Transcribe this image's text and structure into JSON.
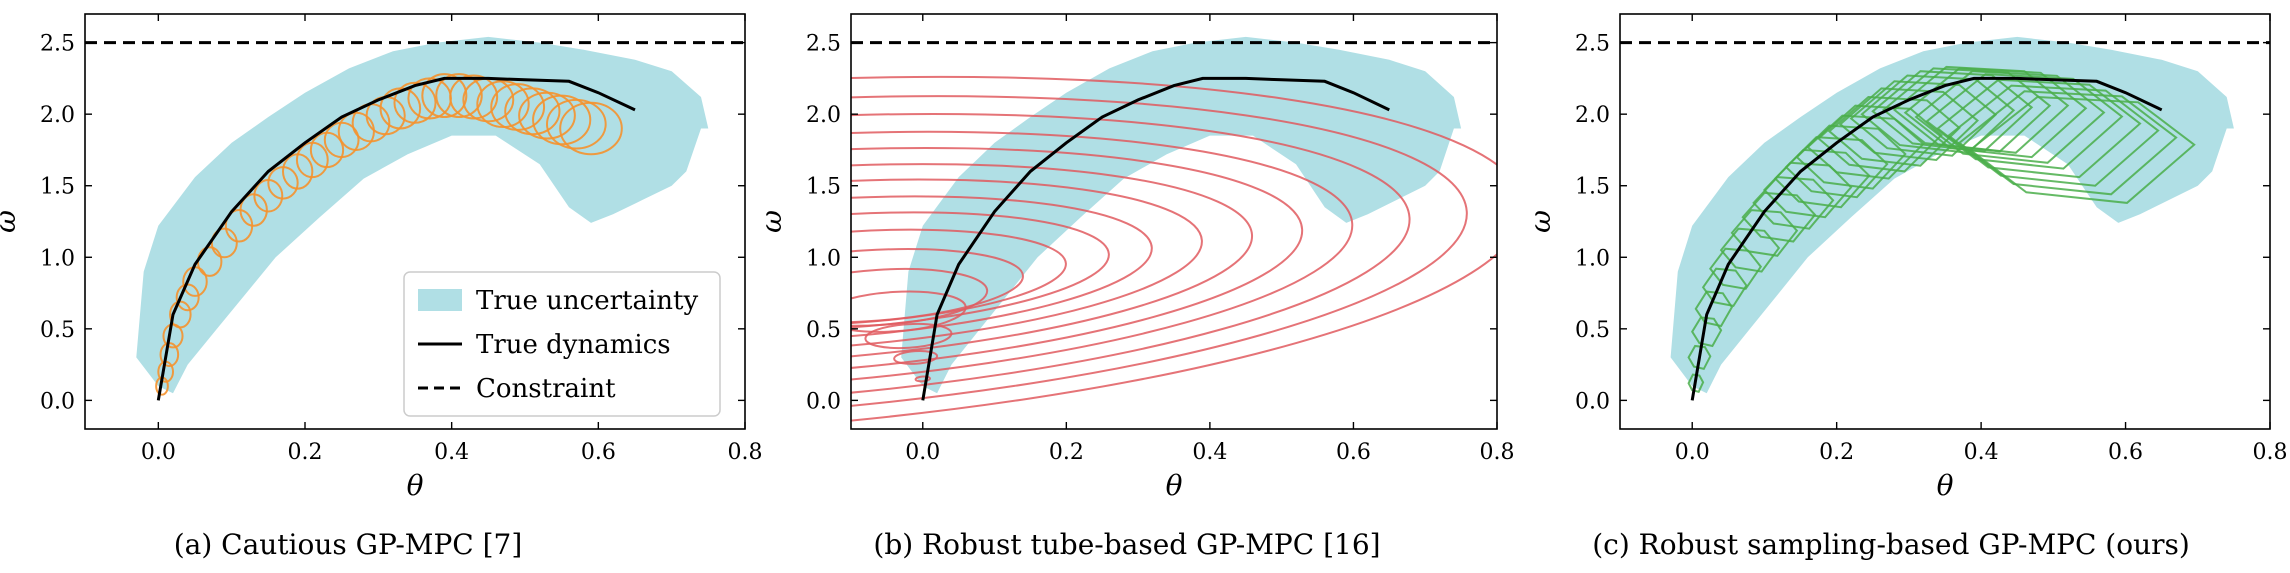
{
  "chart_data": [
    {
      "type": "line",
      "caption": "(a) Cautious GP-MPC [7]",
      "xlabel": "θ",
      "ylabel": "ω",
      "xlim": [
        -0.1,
        0.8
      ],
      "ylim": [
        -0.2,
        2.7
      ],
      "xticks": [
        "0.0",
        "0.2",
        "0.4",
        "0.6",
        "0.8"
      ],
      "yticks": [
        "0.0",
        "0.5",
        "1.0",
        "1.5",
        "2.0",
        "2.5"
      ],
      "constraint": 2.5,
      "true_dynamics": {
        "x": [
          0.0,
          0.02,
          0.05,
          0.1,
          0.15,
          0.2,
          0.25,
          0.3,
          0.35,
          0.39,
          0.45,
          0.5,
          0.56,
          0.6,
          0.65
        ],
        "y": [
          0.0,
          0.6,
          0.95,
          1.32,
          1.6,
          1.8,
          1.98,
          2.1,
          2.2,
          2.25,
          2.25,
          2.24,
          2.23,
          2.15,
          2.03
        ]
      },
      "uncertainty_region": {
        "upper": {
          "x": [
            -0.03,
            -0.02,
            0.0,
            0.05,
            0.1,
            0.15,
            0.2,
            0.26,
            0.32,
            0.38,
            0.45,
            0.52,
            0.58,
            0.65,
            0.7,
            0.74,
            0.75
          ],
          "y": [
            0.3,
            0.9,
            1.22,
            1.56,
            1.8,
            1.98,
            2.15,
            2.32,
            2.44,
            2.5,
            2.54,
            2.5,
            2.45,
            2.38,
            2.3,
            2.12,
            1.9
          ]
        },
        "lower": {
          "x": [
            0.74,
            0.72,
            0.7,
            0.66,
            0.62,
            0.59,
            0.56,
            0.52,
            0.46,
            0.4,
            0.34,
            0.28,
            0.22,
            0.16,
            0.12,
            0.08,
            0.04,
            0.02,
            0.0
          ],
          "y": [
            1.9,
            1.6,
            1.5,
            1.4,
            1.3,
            1.24,
            1.35,
            1.65,
            1.85,
            1.85,
            1.72,
            1.55,
            1.28,
            1.0,
            0.75,
            0.5,
            0.25,
            0.05,
            0.1
          ]
        }
      },
      "uncertainty_ellipses": {
        "center_x": [
          0.005,
          0.01,
          0.015,
          0.02,
          0.03,
          0.04,
          0.05,
          0.07,
          0.09,
          0.11,
          0.13,
          0.15,
          0.17,
          0.19,
          0.21,
          0.23,
          0.25,
          0.27,
          0.29,
          0.31,
          0.33,
          0.35,
          0.37,
          0.39,
          0.41,
          0.43,
          0.45,
          0.47,
          0.49,
          0.51,
          0.53,
          0.55,
          0.57,
          0.59
        ],
        "center_y": [
          0.1,
          0.2,
          0.32,
          0.45,
          0.6,
          0.72,
          0.83,
          0.97,
          1.1,
          1.22,
          1.33,
          1.43,
          1.52,
          1.6,
          1.68,
          1.75,
          1.82,
          1.88,
          1.94,
          1.99,
          2.04,
          2.08,
          2.11,
          2.13,
          2.13,
          2.12,
          2.1,
          2.07,
          2.05,
          2.02,
          1.99,
          1.96,
          1.93,
          1.9
        ],
        "half_width": [
          0.008,
          0.01,
          0.012,
          0.013,
          0.014,
          0.015,
          0.016,
          0.016,
          0.017,
          0.018,
          0.018,
          0.019,
          0.02,
          0.02,
          0.021,
          0.022,
          0.023,
          0.024,
          0.025,
          0.026,
          0.027,
          0.028,
          0.029,
          0.03,
          0.031,
          0.032,
          0.034,
          0.035,
          0.036,
          0.037,
          0.038,
          0.039,
          0.04,
          0.042
        ],
        "half_height": [
          0.06,
          0.07,
          0.08,
          0.08,
          0.09,
          0.09,
          0.1,
          0.1,
          0.1,
          0.11,
          0.11,
          0.11,
          0.11,
          0.12,
          0.12,
          0.12,
          0.12,
          0.13,
          0.13,
          0.13,
          0.14,
          0.14,
          0.14,
          0.15,
          0.15,
          0.15,
          0.15,
          0.16,
          0.16,
          0.16,
          0.16,
          0.17,
          0.17,
          0.18
        ]
      },
      "legend": {
        "placement": "lower-right",
        "entries": [
          "True uncertainty",
          "True dynamics",
          "Constraint"
        ]
      },
      "colors": {
        "uncertainty": "#b0dfe5",
        "method": "#f5922e",
        "dynamics": "#000000",
        "constraint": "#000000"
      }
    },
    {
      "type": "line",
      "caption": "(b) Robust tube-based GP-MPC [16]",
      "xlabel": "θ",
      "ylabel": "ω",
      "xlim": [
        -0.1,
        0.8
      ],
      "ylim": [
        -0.2,
        2.7
      ],
      "xticks": [
        "0.0",
        "0.2",
        "0.4",
        "0.6",
        "0.8"
      ],
      "yticks": [
        "0.0",
        "0.5",
        "1.0",
        "1.5",
        "2.0",
        "2.5"
      ],
      "constraint": 2.5,
      "true_dynamics": {
        "x": [
          0.0,
          0.02,
          0.05,
          0.1,
          0.15,
          0.2,
          0.25,
          0.3,
          0.35,
          0.39,
          0.45,
          0.5,
          0.56,
          0.6,
          0.65
        ],
        "y": [
          0.0,
          0.6,
          0.95,
          1.32,
          1.6,
          1.8,
          1.98,
          2.1,
          2.2,
          2.25,
          2.25,
          2.24,
          2.23,
          2.15,
          2.03
        ]
      },
      "uncertainty_region": {
        "upper": {
          "x": [
            -0.03,
            -0.02,
            0.0,
            0.05,
            0.1,
            0.15,
            0.2,
            0.26,
            0.32,
            0.38,
            0.45,
            0.52,
            0.58,
            0.65,
            0.7,
            0.74,
            0.75
          ],
          "y": [
            0.3,
            0.9,
            1.22,
            1.56,
            1.8,
            1.98,
            2.15,
            2.32,
            2.44,
            2.5,
            2.54,
            2.5,
            2.45,
            2.38,
            2.3,
            2.12,
            1.9
          ]
        },
        "lower": {
          "x": [
            0.74,
            0.72,
            0.7,
            0.66,
            0.62,
            0.59,
            0.56,
            0.52,
            0.46,
            0.4,
            0.34,
            0.28,
            0.22,
            0.16,
            0.12,
            0.08,
            0.04,
            0.02,
            0.0
          ],
          "y": [
            1.9,
            1.6,
            1.5,
            1.4,
            1.3,
            1.24,
            1.35,
            1.65,
            1.85,
            1.85,
            1.72,
            1.55,
            1.28,
            1.0,
            0.75,
            0.5,
            0.25,
            0.05,
            0.1
          ]
        }
      },
      "tube_ellipses": {
        "center_x": [
          0.0,
          -0.01,
          -0.02,
          -0.04,
          -0.06,
          -0.08,
          -0.1,
          -0.12,
          -0.14,
          -0.16,
          -0.18,
          -0.2,
          -0.22,
          -0.24,
          -0.26,
          -0.28
        ],
        "center_y": [
          0.15,
          0.3,
          0.45,
          0.62,
          0.72,
          0.8,
          0.86,
          0.9,
          0.92,
          0.94,
          0.95,
          0.96,
          0.97,
          0.98,
          0.99,
          1.0
        ],
        "half_width": [
          0.01,
          0.03,
          0.06,
          0.1,
          0.15,
          0.22,
          0.3,
          0.38,
          0.46,
          0.55,
          0.64,
          0.73,
          0.82,
          0.92,
          1.02,
          1.12
        ],
        "half_height": [
          0.03,
          0.08,
          0.15,
          0.25,
          0.35,
          0.45,
          0.58,
          0.72,
          0.88,
          1.05,
          1.22,
          1.4,
          1.58,
          1.78,
          1.98,
          2.2
        ],
        "tilt": -0.32
      },
      "colors": {
        "uncertainty": "#b0dfe5",
        "method": "#e05a5f",
        "dynamics": "#000000",
        "constraint": "#000000"
      }
    },
    {
      "type": "line",
      "caption": "(c) Robust sampling-based GP-MPC (ours)",
      "xlabel": "θ",
      "ylabel": "ω",
      "xlim": [
        -0.1,
        0.8
      ],
      "ylim": [
        -0.2,
        2.7
      ],
      "xticks": [
        "0.0",
        "0.2",
        "0.4",
        "0.6",
        "0.8"
      ],
      "yticks": [
        "0.0",
        "0.5",
        "1.0",
        "1.5",
        "2.0",
        "2.5"
      ],
      "constraint": 2.5,
      "true_dynamics": {
        "x": [
          0.0,
          0.02,
          0.05,
          0.1,
          0.15,
          0.2,
          0.25,
          0.3,
          0.35,
          0.39,
          0.45,
          0.5,
          0.56,
          0.6,
          0.65
        ],
        "y": [
          0.0,
          0.6,
          0.95,
          1.32,
          1.6,
          1.8,
          1.98,
          2.1,
          2.2,
          2.25,
          2.25,
          2.24,
          2.23,
          2.15,
          2.03
        ]
      },
      "uncertainty_region": {
        "upper": {
          "x": [
            -0.03,
            -0.02,
            0.0,
            0.05,
            0.1,
            0.15,
            0.2,
            0.26,
            0.32,
            0.38,
            0.45,
            0.52,
            0.58,
            0.65,
            0.7,
            0.74,
            0.75
          ],
          "y": [
            0.3,
            0.9,
            1.22,
            1.56,
            1.8,
            1.98,
            2.15,
            2.32,
            2.44,
            2.5,
            2.54,
            2.5,
            2.45,
            2.38,
            2.3,
            2.12,
            1.9
          ]
        },
        "lower": {
          "x": [
            0.74,
            0.72,
            0.7,
            0.66,
            0.62,
            0.59,
            0.56,
            0.52,
            0.46,
            0.4,
            0.34,
            0.28,
            0.22,
            0.16,
            0.12,
            0.08,
            0.04,
            0.02,
            0.0
          ],
          "y": [
            1.9,
            1.6,
            1.5,
            1.4,
            1.3,
            1.24,
            1.35,
            1.65,
            1.85,
            1.85,
            1.72,
            1.55,
            1.28,
            1.0,
            0.75,
            0.5,
            0.25,
            0.05,
            0.1
          ]
        }
      },
      "sample_polygons": {
        "center_x": [
          0.005,
          0.01,
          0.02,
          0.03,
          0.045,
          0.06,
          0.08,
          0.1,
          0.12,
          0.14,
          0.16,
          0.18,
          0.2,
          0.22,
          0.24,
          0.26,
          0.28,
          0.3,
          0.32,
          0.34,
          0.36,
          0.38,
          0.4,
          0.42,
          0.44,
          0.46,
          0.48,
          0.5,
          0.52,
          0.54
        ],
        "center_y": [
          0.12,
          0.3,
          0.48,
          0.64,
          0.79,
          0.92,
          1.05,
          1.17,
          1.28,
          1.38,
          1.47,
          1.55,
          1.63,
          1.7,
          1.77,
          1.83,
          1.88,
          1.93,
          1.97,
          2.0,
          2.02,
          2.03,
          2.03,
          2.01,
          1.98,
          1.95,
          1.9,
          1.85,
          1.8,
          1.75
        ],
        "half_width": [
          0.01,
          0.015,
          0.02,
          0.025,
          0.03,
          0.035,
          0.04,
          0.045,
          0.05,
          0.055,
          0.06,
          0.065,
          0.07,
          0.075,
          0.08,
          0.085,
          0.09,
          0.095,
          0.1,
          0.105,
          0.11,
          0.115,
          0.12,
          0.125,
          0.13,
          0.135,
          0.14,
          0.145,
          0.15,
          0.155
        ],
        "half_height": [
          0.06,
          0.08,
          0.1,
          0.12,
          0.13,
          0.14,
          0.15,
          0.16,
          0.17,
          0.18,
          0.19,
          0.2,
          0.21,
          0.22,
          0.22,
          0.23,
          0.24,
          0.25,
          0.26,
          0.27,
          0.28,
          0.29,
          0.3,
          0.31,
          0.32,
          0.33,
          0.34,
          0.35,
          0.36,
          0.37
        ]
      },
      "colors": {
        "uncertainty": "#b0dfe5",
        "method": "#4aae4a",
        "dynamics": "#000000",
        "constraint": "#000000"
      }
    }
  ]
}
